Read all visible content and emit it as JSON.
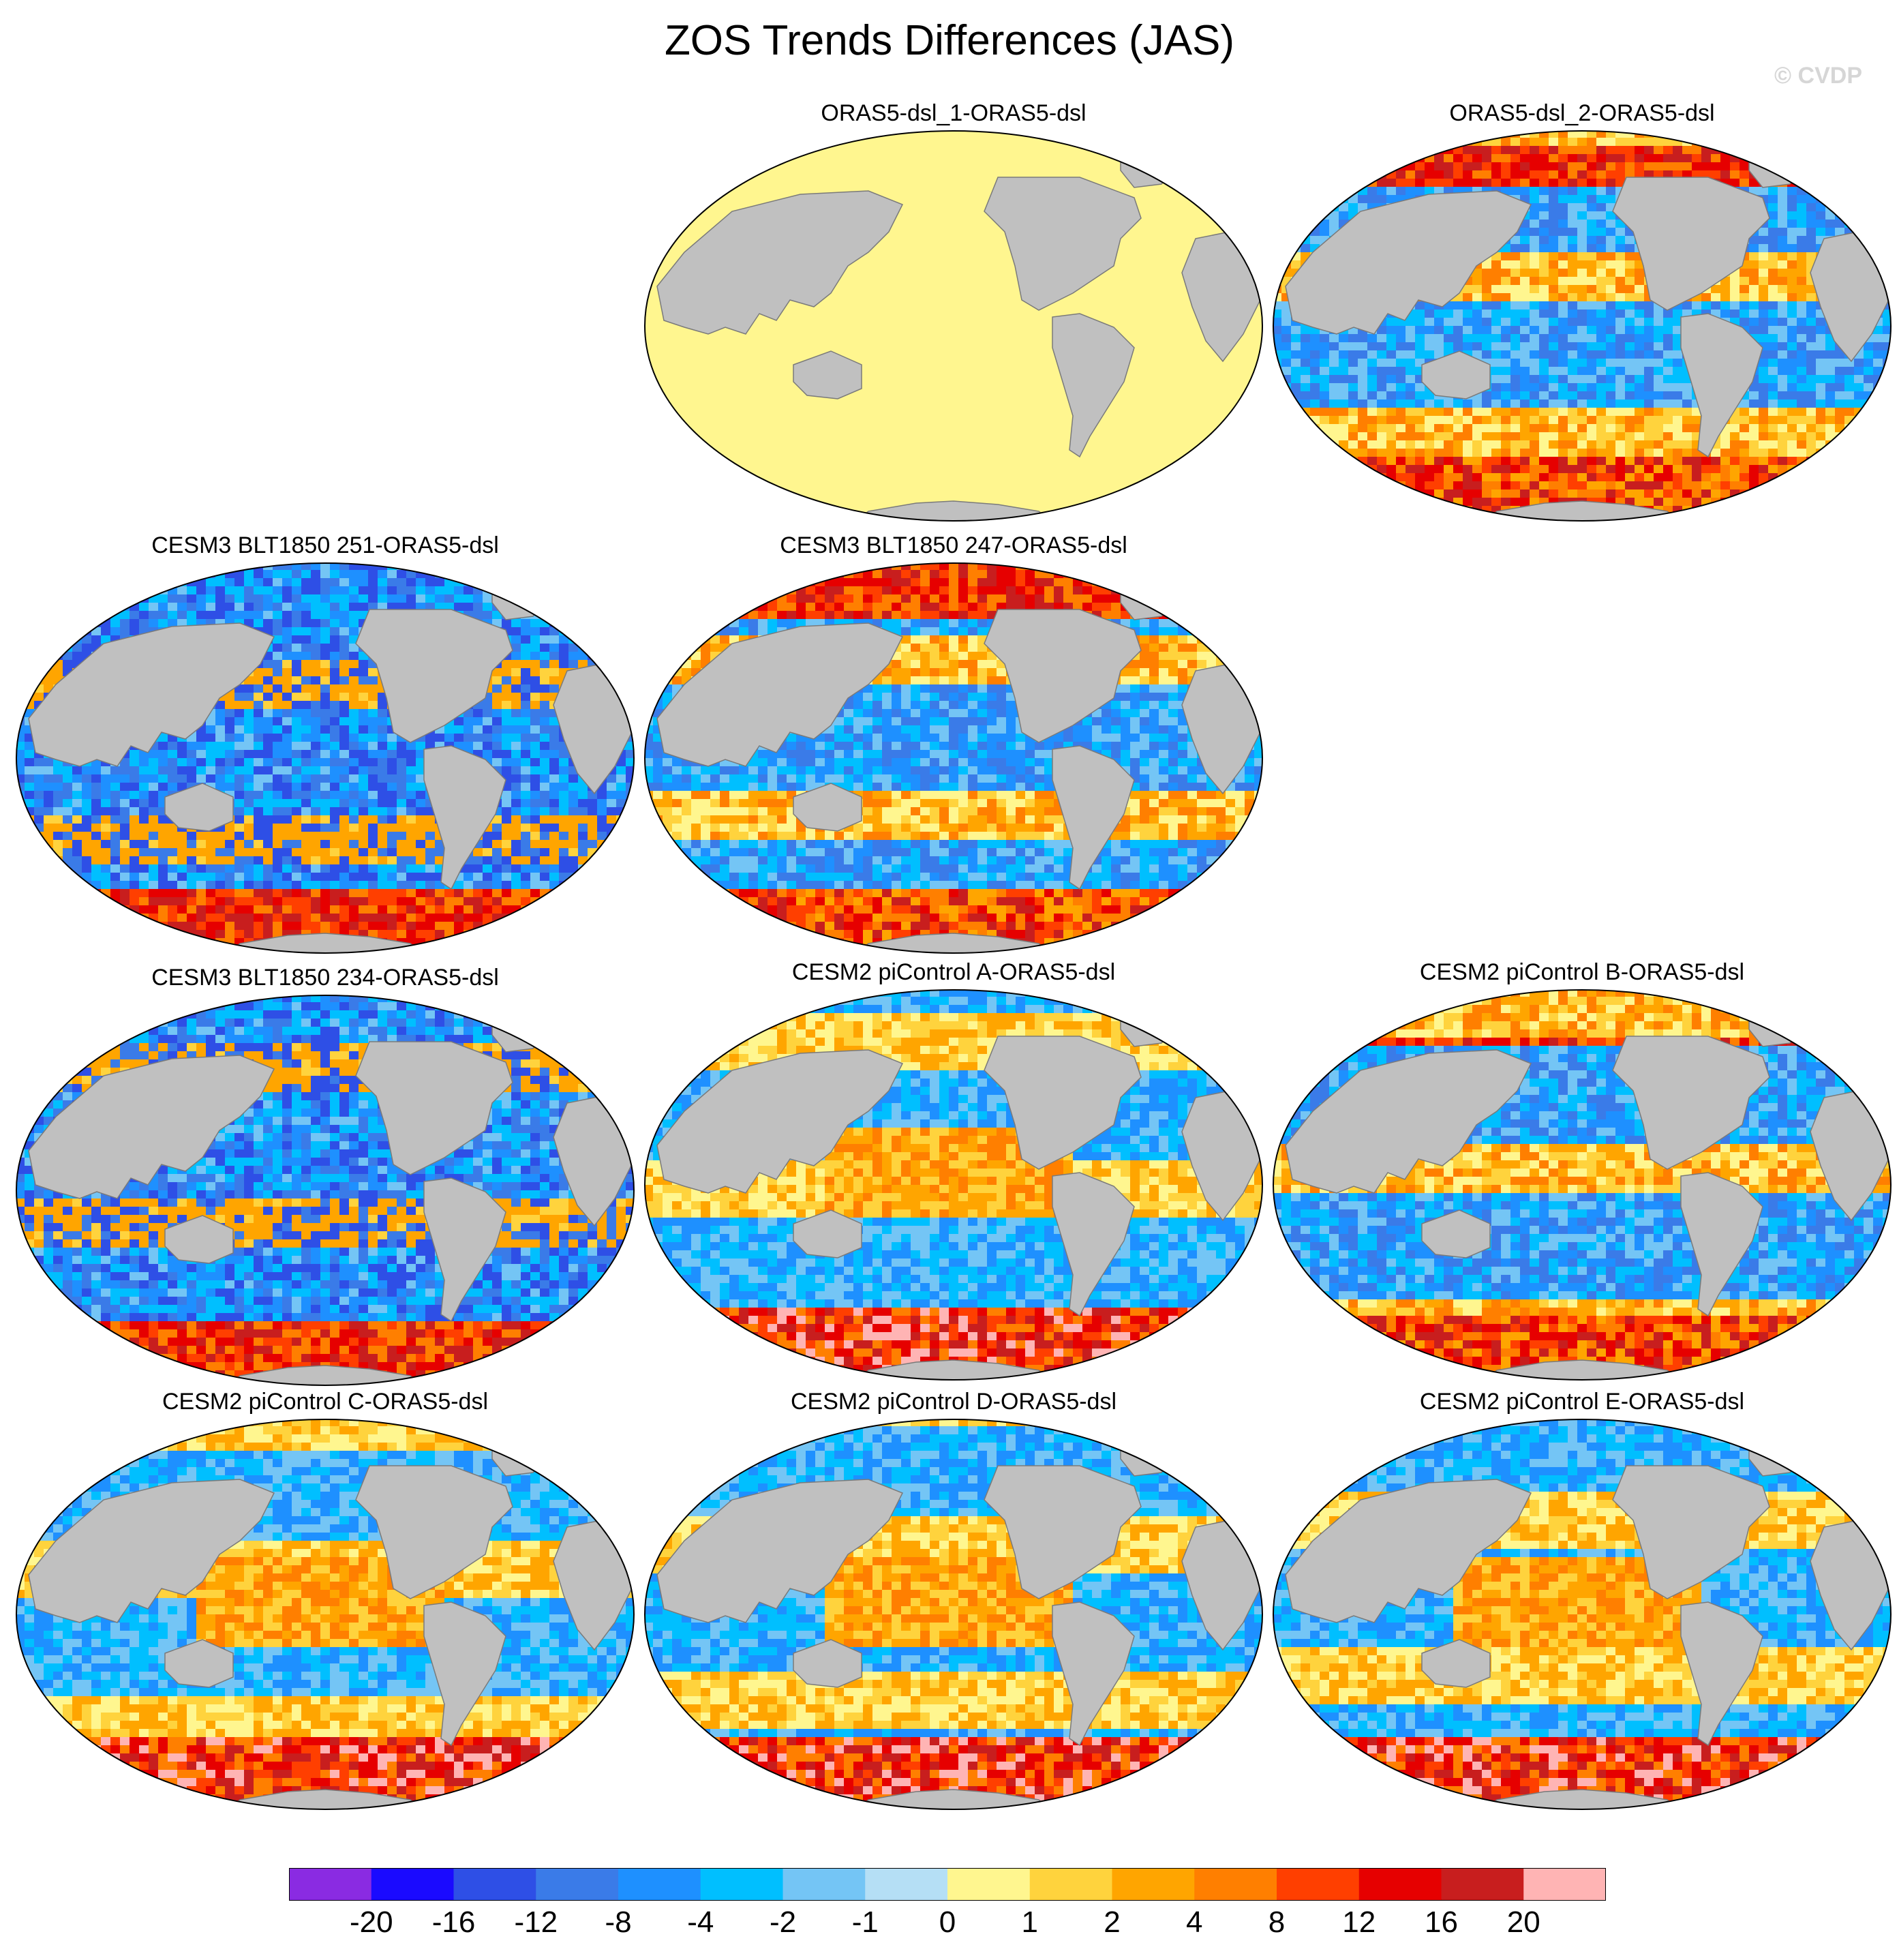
{
  "title": "ZOS Trends Differences (JAS)",
  "watermark": "© CVDP",
  "panels": [
    {
      "id": "p1",
      "title": "ORAS5-dsl_1-ORAS5-dsl",
      "pattern": "uniform"
    },
    {
      "id": "p2",
      "title": "ORAS5-dsl_2-ORAS5-dsl",
      "pattern": "mixed"
    },
    {
      "id": "p3",
      "title": "CESM3 BLT1850 251-ORAS5-dsl",
      "pattern": "blue"
    },
    {
      "id": "p4",
      "title": "CESM3 BLT1850 247-ORAS5-dsl",
      "pattern": "mixed"
    },
    {
      "id": "p5",
      "title": "CESM3 BLT1850 234-ORAS5-dsl",
      "pattern": "blue"
    },
    {
      "id": "p6",
      "title": "CESM2 piControl A-ORAS5-dsl",
      "pattern": "warm"
    },
    {
      "id": "p7",
      "title": "CESM2 piControl B-ORAS5-dsl",
      "pattern": "mixed"
    },
    {
      "id": "p8",
      "title": "CESM2 piControl C-ORAS5-dsl",
      "pattern": "warm"
    },
    {
      "id": "p9",
      "title": "CESM2 piControl D-ORAS5-dsl",
      "pattern": "warm"
    },
    {
      "id": "p10",
      "title": "CESM2 piControl E-ORAS5-dsl",
      "pattern": "warm"
    }
  ],
  "colorbar": {
    "labels": [
      "-20",
      "-16",
      "-12",
      "-8",
      "-4",
      "-2",
      "-1",
      "0",
      "1",
      "2",
      "4",
      "8",
      "12",
      "16",
      "20"
    ],
    "colors": [
      "#8a2be2",
      "#1a0aff",
      "#2e4fe6",
      "#3a7be8",
      "#1e90ff",
      "#00bfff",
      "#74c5f5",
      "#b5dff5",
      "#fff68f",
      "#ffd33d",
      "#ffa500",
      "#ff7f00",
      "#ff3f00",
      "#e60000",
      "#c81e1e",
      "#ffb4b4"
    ]
  },
  "colors": {
    "land": "#c0c0c0",
    "uniform_ocean": "#fff68f"
  }
}
